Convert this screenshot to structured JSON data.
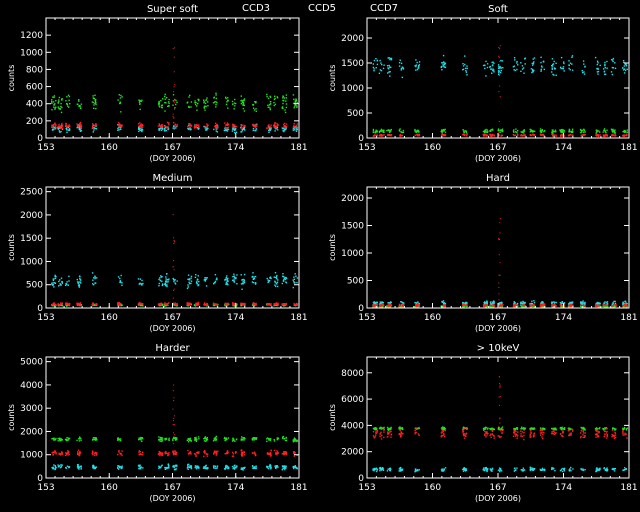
{
  "legend": [
    {
      "label": "CCD3",
      "color": "#22e0e8"
    },
    {
      "label": "CCD5",
      "color": "#22e022"
    },
    {
      "label": "CCD7",
      "color": "#ff2020"
    }
  ],
  "chart_data": [
    {
      "type": "scatter",
      "title": "Super soft",
      "xlabel": "(DOY 2006)",
      "ylabel": "counts",
      "xlim": [
        153,
        181
      ],
      "ylim": [
        0,
        1400
      ],
      "xticks": [
        153,
        160,
        167,
        174,
        181
      ],
      "yticks": [
        0,
        200,
        400,
        600,
        800,
        1000,
        1200
      ],
      "series": [
        {
          "name": "CCD3",
          "color": "#22e0e8",
          "level": 120,
          "spread": 60
        },
        {
          "name": "CCD5",
          "color": "#22e022",
          "level": 420,
          "spread": 140
        },
        {
          "name": "CCD7",
          "color": "#ff2020",
          "level": 150,
          "spread": 50
        }
      ]
    },
    {
      "type": "scatter",
      "title": "Soft",
      "xlabel": "(DOY 2006)",
      "ylabel": "counts",
      "xlim": [
        153,
        181
      ],
      "ylim": [
        0,
        2400
      ],
      "xticks": [
        153,
        160,
        167,
        174,
        181
      ],
      "yticks": [
        0,
        500,
        1000,
        1500,
        2000
      ],
      "series": [
        {
          "name": "CCD3",
          "color": "#22e0e8",
          "level": 1450,
          "spread": 250
        },
        {
          "name": "CCD5",
          "color": "#22e022",
          "level": 150,
          "spread": 60
        },
        {
          "name": "CCD7",
          "color": "#ff2020",
          "level": 70,
          "spread": 30
        }
      ]
    },
    {
      "type": "scatter",
      "title": "Medium",
      "xlabel": "(DOY 2006)",
      "ylabel": "counts",
      "xlim": [
        153,
        181
      ],
      "ylim": [
        0,
        2600
      ],
      "xticks": [
        153,
        160,
        167,
        174,
        181
      ],
      "yticks": [
        0,
        500,
        1000,
        1500,
        2000,
        2500
      ],
      "series": [
        {
          "name": "CCD3",
          "color": "#22e0e8",
          "level": 600,
          "spread": 200
        },
        {
          "name": "CCD5",
          "color": "#22e022",
          "level": 80,
          "spread": 30
        },
        {
          "name": "CCD7",
          "color": "#ff2020",
          "level": 100,
          "spread": 40
        }
      ]
    },
    {
      "type": "scatter",
      "title": "Hard",
      "xlabel": "(DOY 2006)",
      "ylabel": "counts",
      "xlim": [
        153,
        181
      ],
      "ylim": [
        0,
        2200
      ],
      "xticks": [
        153,
        160,
        167,
        174,
        181
      ],
      "yticks": [
        0,
        500,
        1000,
        1500,
        2000
      ],
      "series": [
        {
          "name": "CCD3",
          "color": "#22e0e8",
          "level": 100,
          "spread": 50
        },
        {
          "name": "CCD5",
          "color": "#22e022",
          "level": 40,
          "spread": 20
        },
        {
          "name": "CCD7",
          "color": "#ff2020",
          "level": 60,
          "spread": 30
        }
      ]
    },
    {
      "type": "scatter",
      "title": "Harder",
      "xlabel": "(DOY 2006)",
      "ylabel": "counts",
      "xlim": [
        153,
        181
      ],
      "ylim": [
        0,
        5200
      ],
      "xticks": [
        153,
        160,
        167,
        174,
        181
      ],
      "yticks": [
        0,
        1000,
        2000,
        3000,
        4000,
        5000
      ],
      "series": [
        {
          "name": "CCD3",
          "color": "#22e0e8",
          "level": 500,
          "spread": 150
        },
        {
          "name": "CCD5",
          "color": "#22e022",
          "level": 1700,
          "spread": 150
        },
        {
          "name": "CCD7",
          "color": "#ff2020",
          "level": 1100,
          "spread": 180
        }
      ]
    },
    {
      "type": "scatter",
      "title": "> 10keV",
      "xlabel": "(DOY 2006)",
      "ylabel": "counts",
      "xlim": [
        153,
        181
      ],
      "ylim": [
        0,
        9200
      ],
      "xticks": [
        153,
        160,
        167,
        174,
        181
      ],
      "yticks": [
        0,
        2000,
        4000,
        6000,
        8000
      ],
      "series": [
        {
          "name": "CCD3",
          "color": "#22e0e8",
          "level": 700,
          "spread": 200
        },
        {
          "name": "CCD5",
          "color": "#22e022",
          "level": 3800,
          "spread": 150
        },
        {
          "name": "CCD7",
          "color": "#ff2020",
          "level": 3400,
          "spread": 500
        }
      ]
    }
  ]
}
